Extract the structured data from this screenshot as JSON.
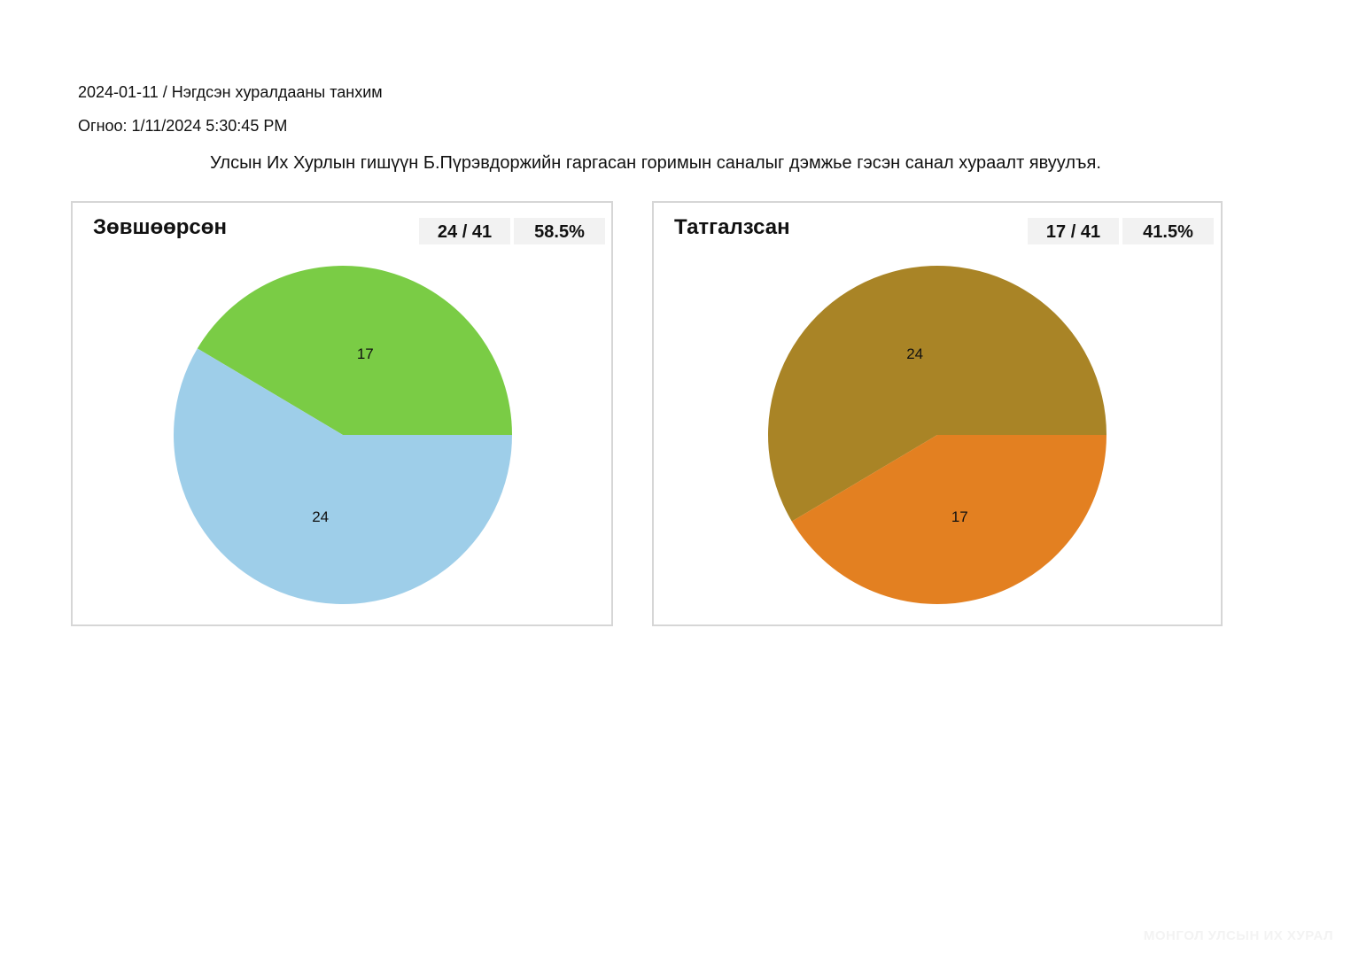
{
  "header": {
    "session_line": "2024-01-11 / Нэгдсэн хуралдааны танхим",
    "date_line": "Огноо: 1/11/2024 5:30:45 PM",
    "subject": "Улсын Их Хурлын гишүүн Б.Пүрэвдоржийн гаргасан горимын саналыг дэмжье гэсэн санал хураалт явуулъя."
  },
  "panels": {
    "approve": {
      "title": "Зөвшөөрсөн",
      "count": "24 / 41",
      "percent": "58.5%"
    },
    "reject": {
      "title": "Татгалзсан",
      "count": "17 / 41",
      "percent": "41.5%"
    }
  },
  "watermark": "МОНГОЛ УЛСЫН ИХ ХУРАЛ",
  "chart_data": [
    {
      "type": "pie",
      "title": "Зөвшөөрсөн",
      "categories": [
        "17",
        "24"
      ],
      "values": [
        17,
        24
      ],
      "colors": [
        "#7acc45",
        "#9ecee9"
      ]
    },
    {
      "type": "pie",
      "title": "Татгалзсан",
      "categories": [
        "24",
        "17"
      ],
      "values": [
        24,
        17
      ],
      "colors": [
        "#a98426",
        "#e38021"
      ]
    }
  ]
}
